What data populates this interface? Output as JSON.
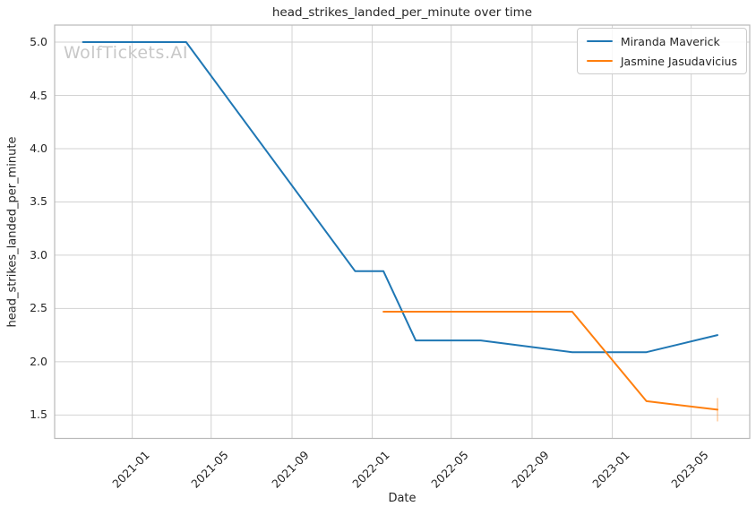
{
  "figure": {
    "title": "head_strikes_landed_per_minute over time",
    "watermark": "WolfTickets.AI"
  },
  "colors": {
    "grid": "#d2d2d2",
    "spine": "#b9b9b9",
    "text": "#262626",
    "watermark": "#c8c8c8",
    "series_blue": "#1f77b4",
    "series_orange": "#ff7f0e"
  },
  "legend": {
    "position": "upper right",
    "items": [
      {
        "label": "Miranda Maverick",
        "color": "#1f77b4"
      },
      {
        "label": "Jasmine Jasudavicius",
        "color": "#ff7f0e"
      }
    ]
  },
  "chart_data": {
    "type": "line",
    "title": "head_strikes_landed_per_minute over time",
    "xlabel": "Date",
    "ylabel": "head_strikes_landed_per_minute",
    "x_type": "date",
    "grid": true,
    "legend_position": "upper right",
    "xlim": [
      "2020-09-05",
      "2023-07-29"
    ],
    "ylim": [
      1.28,
      5.16
    ],
    "yticks": [
      1.5,
      2.0,
      2.5,
      3.0,
      3.5,
      4.0,
      4.5,
      5.0
    ],
    "ytick_format": "one_decimal",
    "xticks": [
      {
        "date": "2021-01-01",
        "label": "2021-01"
      },
      {
        "date": "2021-05-01",
        "label": "2021-05"
      },
      {
        "date": "2021-09-01",
        "label": "2021-09"
      },
      {
        "date": "2022-01-01",
        "label": "2022-01"
      },
      {
        "date": "2022-05-01",
        "label": "2022-05"
      },
      {
        "date": "2022-09-01",
        "label": "2022-09"
      },
      {
        "date": "2023-01-01",
        "label": "2023-01"
      },
      {
        "date": "2023-05-01",
        "label": "2023-05"
      }
    ],
    "series": [
      {
        "name": "Miranda Maverick",
        "color": "#1f77b4",
        "x": [
          "2020-10-18",
          "2021-03-24",
          "2021-12-06",
          "2022-01-18",
          "2022-03-08",
          "2022-06-15",
          "2022-11-01",
          "2023-02-22",
          "2023-06-10"
        ],
        "y": [
          5.0,
          5.0,
          2.85,
          2.85,
          2.2,
          2.2,
          2.09,
          2.09,
          2.25
        ]
      },
      {
        "name": "Jasmine Jasudavicius",
        "color": "#ff7f0e",
        "x": [
          "2022-01-18",
          "2022-11-01",
          "2023-02-22",
          "2023-06-10"
        ],
        "y": [
          2.47,
          2.47,
          1.63,
          1.55
        ],
        "end_tick": {
          "y_low": 1.44,
          "y_high": 1.66,
          "opacity": 0.3
        }
      }
    ]
  }
}
